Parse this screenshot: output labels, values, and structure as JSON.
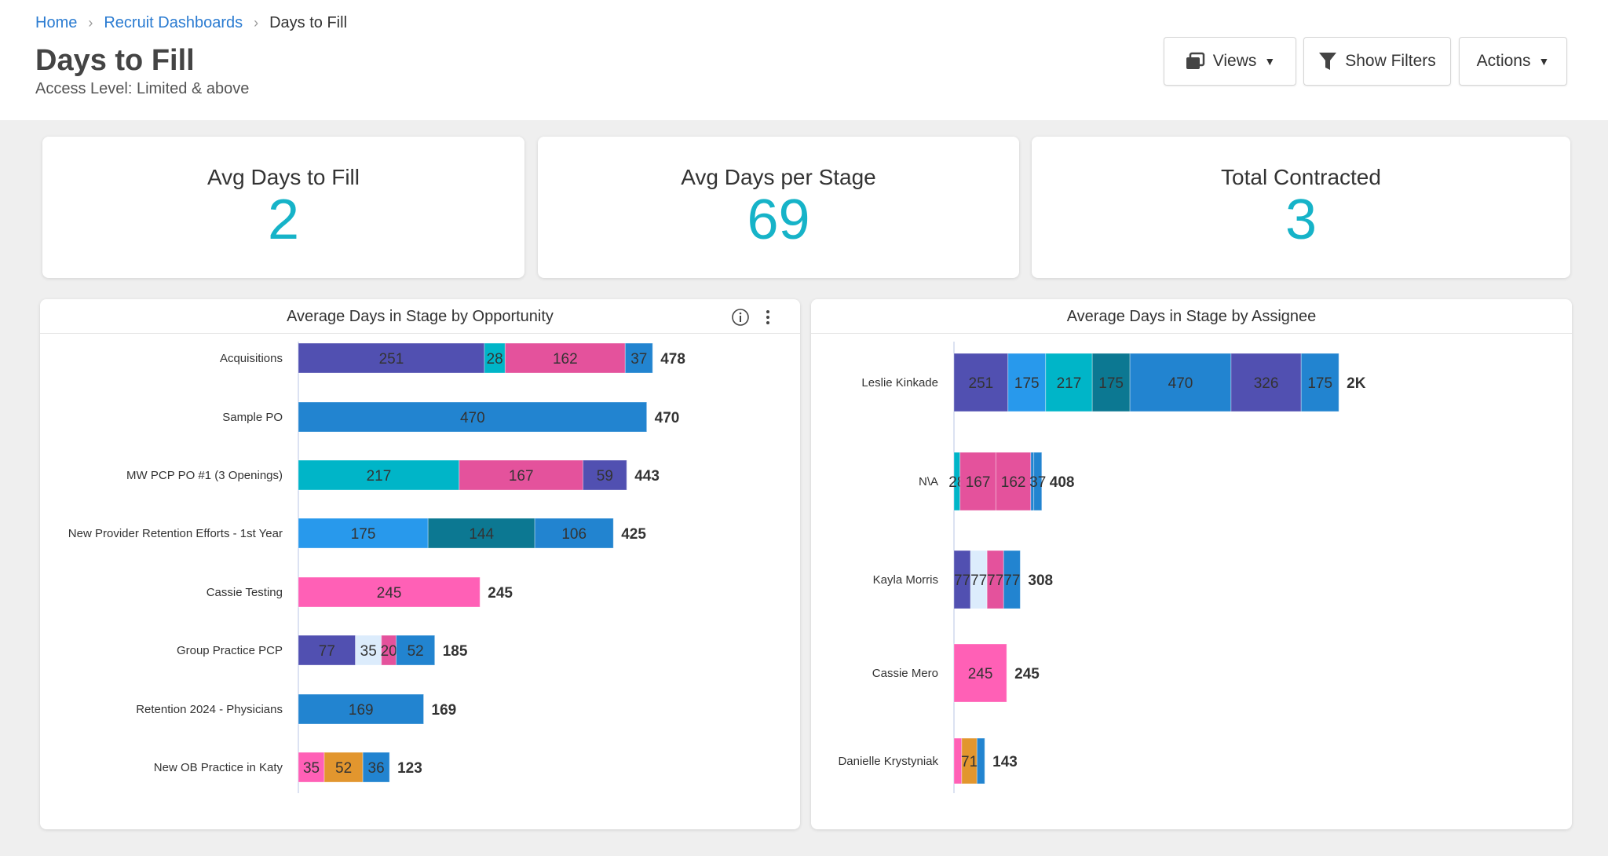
{
  "breadcrumb": [
    "Home",
    "Recruit Dashboards",
    "Days to Fill"
  ],
  "header": {
    "title": "Days to Fill",
    "subtitle": "Access Level: Limited & above"
  },
  "toolbar": {
    "views": "Views",
    "show_filters": "Show Filters",
    "actions": "Actions"
  },
  "kpis": [
    {
      "label": "Avg Days to Fill",
      "value": "2"
    },
    {
      "label": "Avg Days per Stage",
      "value": "69"
    },
    {
      "label": "Total Contracted",
      "value": "3"
    }
  ],
  "colors": {
    "purple": "#5150b1",
    "teal": "#00b5c8",
    "pink": "#e4529c",
    "blue": "#2284d0",
    "lightblue": "#2899ec",
    "darkteal": "#0c7892",
    "hotpink": "#ff60b6",
    "pale": "#dcecfc",
    "orange": "#e2962e",
    "kpi": "#16b3c8",
    "link": "#2a7bd1"
  },
  "chart_data": [
    {
      "type": "bar",
      "orientation": "horizontal",
      "stacked": true,
      "title": "Average Days in Stage by Opportunity",
      "categories": [
        "Acquisitions",
        "Sample PO",
        "MW PCP PO #1 (3 Openings)",
        "New Provider Retention Efforts - 1st Year",
        "Cassie Testing",
        "Group Practice PCP",
        "Retention 2024 - Physicians",
        "New OB Practice in Katy"
      ],
      "totals": [
        "478",
        "470",
        "443",
        "425",
        "245",
        "185",
        "169",
        "123"
      ],
      "rows": [
        [
          {
            "v": 251,
            "c": "purple"
          },
          {
            "v": 28,
            "c": "teal"
          },
          {
            "v": 162,
            "c": "pink"
          },
          {
            "v": 37,
            "c": "blue"
          }
        ],
        [
          {
            "v": 470,
            "c": "blue"
          }
        ],
        [
          {
            "v": 217,
            "c": "teal"
          },
          {
            "v": 167,
            "c": "pink"
          },
          {
            "v": 59,
            "c": "purple"
          }
        ],
        [
          {
            "v": 175,
            "c": "lightblue"
          },
          {
            "v": 144,
            "c": "darkteal"
          },
          {
            "v": 106,
            "c": "blue"
          }
        ],
        [
          {
            "v": 245,
            "c": "hotpink"
          }
        ],
        [
          {
            "v": 77,
            "c": "purple"
          },
          {
            "v": 35,
            "c": "pale"
          },
          {
            "v": 20,
            "c": "pink"
          },
          {
            "v": 52,
            "c": "blue"
          }
        ],
        [
          {
            "v": 169,
            "c": "blue"
          }
        ],
        [
          {
            "v": 35,
            "c": "hotpink"
          },
          {
            "v": 52,
            "c": "orange"
          },
          {
            "v": 36,
            "c": "blue"
          }
        ]
      ]
    },
    {
      "type": "bar",
      "orientation": "horizontal",
      "stacked": true,
      "title": "Average Days in Stage by Assignee",
      "categories": [
        "Leslie Kinkade",
        "N\\A",
        "Kayla Morris",
        "Cassie Mero",
        "Danielle Krystyniak"
      ],
      "totals": [
        "2K",
        "408",
        "308",
        "245",
        "143"
      ],
      "rows": [
        [
          {
            "v": 251,
            "c": "purple"
          },
          {
            "v": 175,
            "c": "lightblue"
          },
          {
            "v": 217,
            "c": "teal"
          },
          {
            "v": 175,
            "c": "darkteal"
          },
          {
            "v": 470,
            "c": "blue"
          },
          {
            "v": 326,
            "c": "purple"
          },
          {
            "v": 175,
            "c": "blue"
          }
        ],
        [
          {
            "v": 28,
            "c": "teal"
          },
          {
            "v": 167,
            "c": "pink"
          },
          {
            "v": 162,
            "c": "pink"
          },
          {
            "v": 14,
            "c": "blue",
            "hide": true
          },
          {
            "v": 37,
            "c": "blue"
          }
        ],
        [
          {
            "v": 77,
            "c": "purple"
          },
          {
            "v": 77,
            "c": "pale"
          },
          {
            "v": 77,
            "c": "pink"
          },
          {
            "v": 77,
            "c": "blue"
          }
        ],
        [
          {
            "v": 245,
            "c": "hotpink"
          }
        ],
        [
          {
            "v": 36,
            "c": "hotpink",
            "hide": true
          },
          {
            "v": 71,
            "c": "orange"
          },
          {
            "v": 36,
            "c": "blue",
            "hide": true
          }
        ]
      ]
    }
  ]
}
